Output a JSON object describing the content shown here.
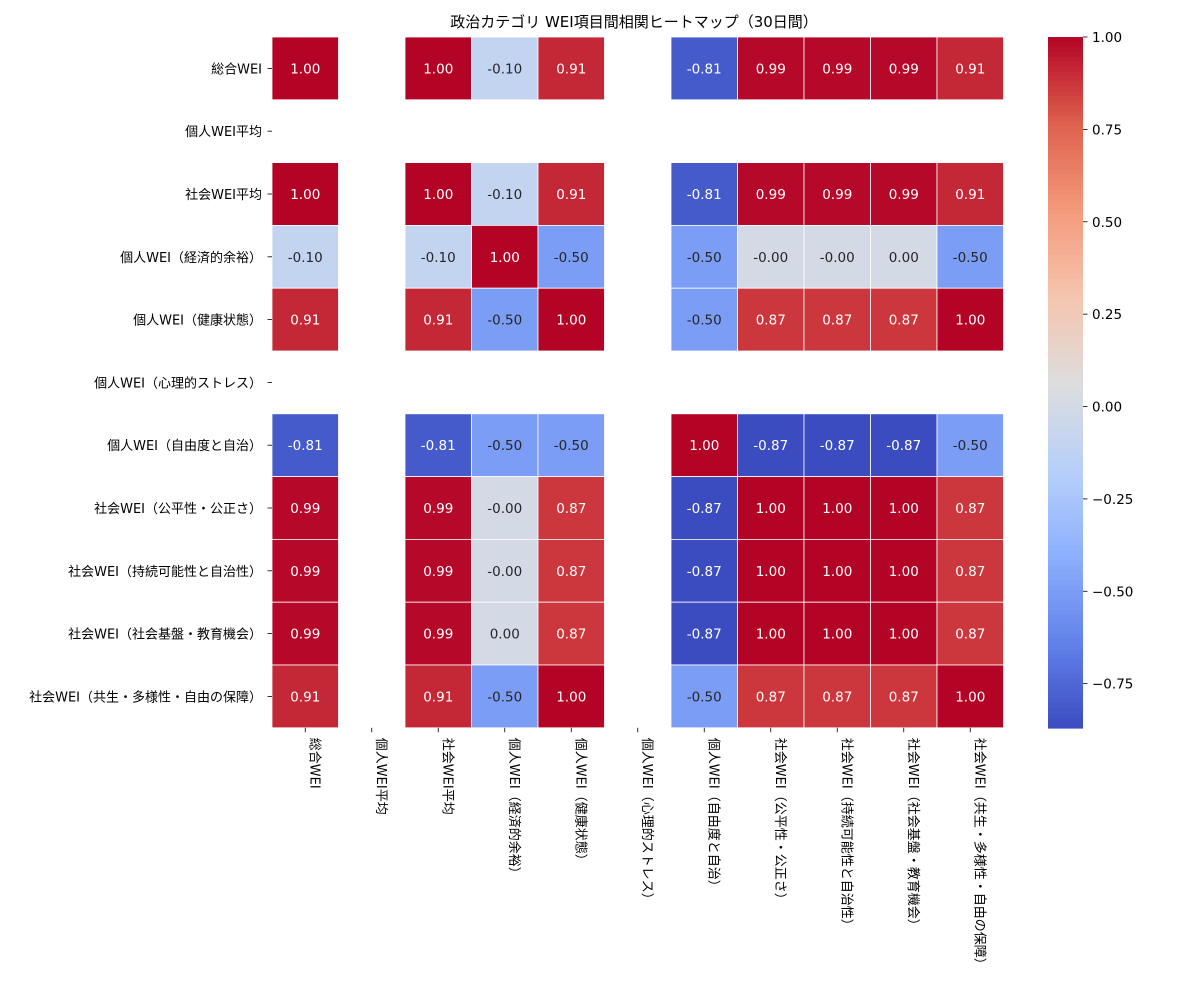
{
  "chart_data": {
    "type": "heatmap",
    "title": "政治カテゴリ WEI項目間相関ヒートマップ（30日間）",
    "row_labels": [
      "総合WEI",
      "個人WEI平均",
      "社会WEI平均",
      "個人WEI（経済的余裕）",
      "個人WEI（健康状態）",
      "個人WEI（心理的ストレス）",
      "個人WEI（自由度と自治）",
      "社会WEI（公平性・公正さ）",
      "社会WEI（持続可能性と自治性）",
      "社会WEI（社会基盤・教育機会）",
      "社会WEI（共生・多様性・自由の保障）"
    ],
    "col_labels": [
      "総合WEI",
      "個人WEI平均",
      "社会WEI平均",
      "個人WEI（経済的余裕）",
      "個人WEI（健康状態）",
      "個人WEI（心理的ストレス）",
      "個人WEI（自由度と自治）",
      "社会WEI（公平性・公正さ）",
      "社会WEI（持続可能性と自治性）",
      "社会WEI（社会基盤・教育機会）",
      "社会WEI（共生・多様性・自由の保障）"
    ],
    "values": [
      [
        1.0,
        null,
        1.0,
        -0.1,
        0.91,
        null,
        -0.81,
        0.99,
        0.99,
        0.99,
        0.91
      ],
      [
        null,
        null,
        null,
        null,
        null,
        null,
        null,
        null,
        null,
        null,
        null
      ],
      [
        1.0,
        null,
        1.0,
        -0.1,
        0.91,
        null,
        -0.81,
        0.99,
        0.99,
        0.99,
        0.91
      ],
      [
        -0.1,
        null,
        -0.1,
        1.0,
        -0.5,
        null,
        -0.5,
        -0.001,
        -0.001,
        0.001,
        -0.5
      ],
      [
        0.91,
        null,
        0.91,
        -0.5,
        1.0,
        null,
        -0.5,
        0.87,
        0.87,
        0.87,
        1.0
      ],
      [
        null,
        null,
        null,
        null,
        null,
        null,
        null,
        null,
        null,
        null,
        null
      ],
      [
        -0.81,
        null,
        -0.81,
        -0.5,
        -0.5,
        null,
        1.0,
        -0.87,
        -0.87,
        -0.87,
        -0.5
      ],
      [
        0.99,
        null,
        0.99,
        -0.001,
        0.87,
        null,
        -0.87,
        1.0,
        1.0,
        1.0,
        0.87
      ],
      [
        0.99,
        null,
        0.99,
        -0.001,
        0.87,
        null,
        -0.87,
        1.0,
        1.0,
        1.0,
        0.87
      ],
      [
        0.99,
        null,
        0.99,
        0.001,
        0.87,
        null,
        -0.87,
        1.0,
        1.0,
        1.0,
        0.87
      ],
      [
        0.91,
        null,
        0.91,
        -0.5,
        1.0,
        null,
        -0.5,
        0.87,
        0.87,
        0.87,
        1.0
      ]
    ],
    "colormap": "coolwarm",
    "vmin": -0.87,
    "vmax": 1.0,
    "colorbar_ticks": [
      1.0,
      0.75,
      0.5,
      0.25,
      0.0,
      -0.25,
      -0.5,
      -0.75
    ],
    "colorbar_tick_labels": [
      "1.00",
      "0.75",
      "0.50",
      "0.25",
      "0.00",
      "−0.25",
      "−0.50",
      "−0.75"
    ],
    "annotation_format": "2 decimals",
    "grid": false,
    "legend": "colorbar at right",
    "colors": {
      "text_dark": "#262626",
      "text_light": "#ffffff",
      "cell_border": "#ffffff"
    }
  }
}
